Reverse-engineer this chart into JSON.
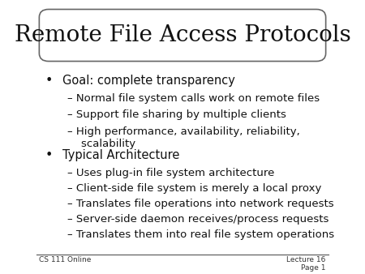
{
  "title": "Remote File Access Protocols",
  "background_color": "#e8e8e8",
  "slide_bg": "#ffffff",
  "border_color": "#888888",
  "title_fontsize": 20,
  "body_fontsize": 10.5,
  "sub_fontsize": 9.5,
  "footer_left": "CS 111 Online",
  "footer_right": "Lecture 16\nPage 1",
  "bullet1": "Goal: complete transparency",
  "sub1": [
    "– Normal file system calls work on remote files",
    "– Support file sharing by multiple clients",
    "– High performance, availability, reliability,\n    scalability"
  ],
  "bullet2": "Typical Architecture",
  "sub2": [
    "– Uses plug-in file system architecture",
    "– Client-side file system is merely a local proxy",
    "– Translates file operations into network requests",
    "– Server-side daemon receives/process requests",
    "– Translates them into real file system operations"
  ]
}
